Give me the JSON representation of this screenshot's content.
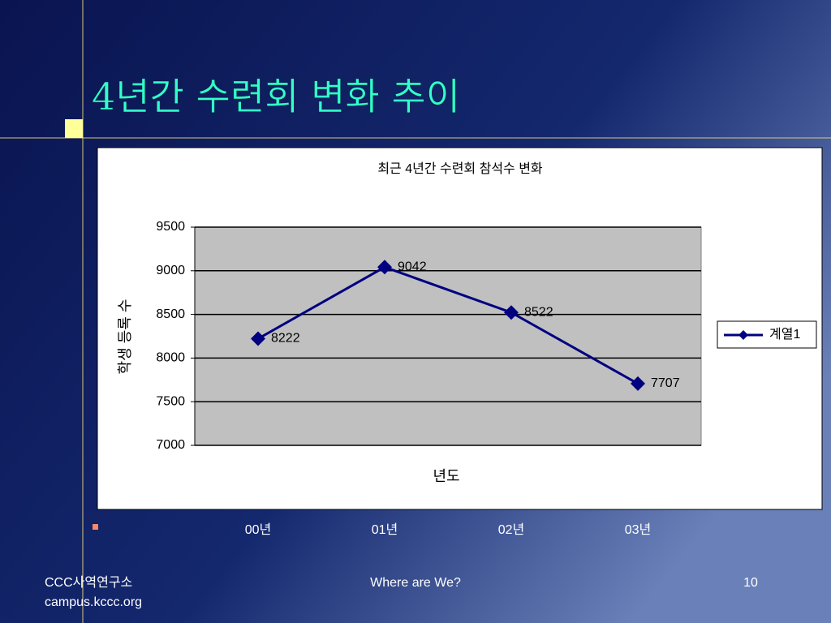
{
  "slide": {
    "title": "4년간 수련회 변화 추이"
  },
  "footer": {
    "org": "CCC사역연구소",
    "site": "campus.kccc.org",
    "center": "Where are We?",
    "page": "10"
  },
  "chart_data": {
    "type": "line",
    "title": "최근 4년간 수련회 참석수 변화",
    "x_label": "년도",
    "y_label": "학생 등록 수",
    "categories": [
      "00년",
      "01년",
      "02년",
      "03년"
    ],
    "series": [
      {
        "name": "계열1",
        "color": "#000080",
        "values": [
          8222,
          9042,
          8522,
          7707
        ]
      }
    ],
    "ylim": [
      7000,
      9500
    ],
    "yticks": [
      7000,
      7500,
      8000,
      8500,
      9000,
      9500
    ],
    "grid": true,
    "legend": "right"
  }
}
